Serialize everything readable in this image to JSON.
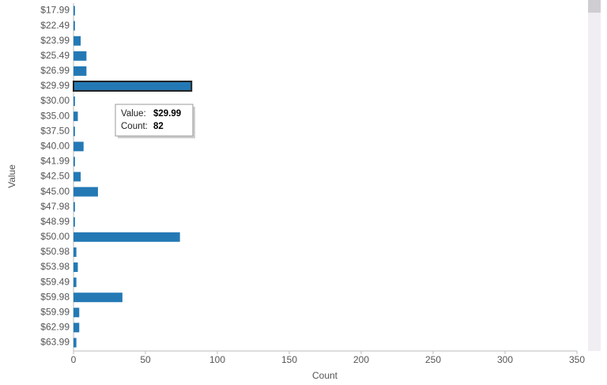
{
  "chart_data": {
    "type": "barh",
    "x_label": "Count",
    "y_label": "Value",
    "categories": [
      "$17.99",
      "$22.49",
      "$23.99",
      "$25.49",
      "$26.99",
      "$29.99",
      "$30.00",
      "$35.00",
      "$37.50",
      "$40.00",
      "$41.99",
      "$42.50",
      "$45.00",
      "$47.98",
      "$48.99",
      "$50.00",
      "$50.98",
      "$53.98",
      "$59.49",
      "$59.98",
      "$59.99",
      "$62.99",
      "$63.99"
    ],
    "values": [
      1,
      1,
      5,
      9,
      9,
      82,
      1,
      3,
      1,
      7,
      1,
      5,
      17,
      1,
      1,
      74,
      2,
      3,
      2,
      34,
      4,
      4,
      2
    ],
    "color": "#2479b5",
    "xlim": [
      0,
      350
    ],
    "xticks": [
      0,
      50,
      100,
      150,
      200,
      250,
      300,
      350
    ],
    "tooltip_labels": [
      "Value:",
      "Count:"
    ]
  }
}
